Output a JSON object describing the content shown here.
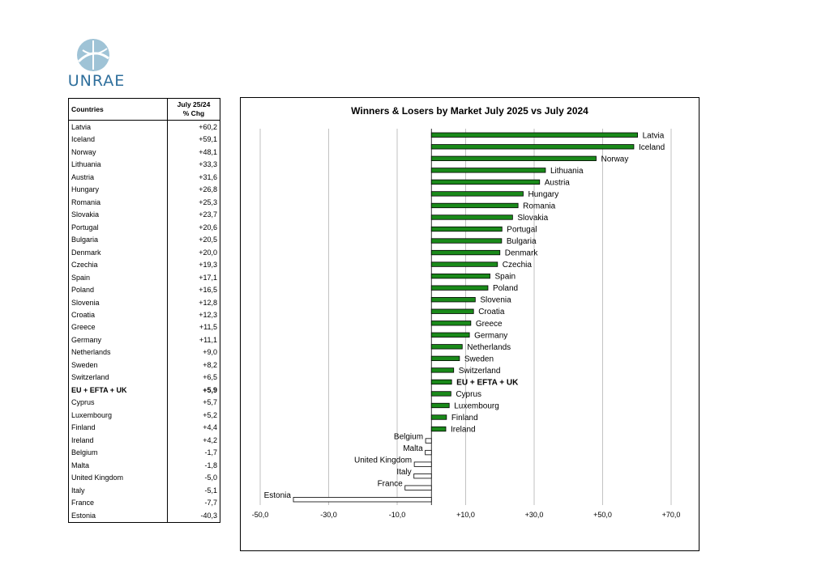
{
  "logo": {
    "name": "UNRAE"
  },
  "table": {
    "header": {
      "col1": "Countries",
      "col2_line1": "July 25/24",
      "col2_line2": "% Chg"
    },
    "rows": [
      {
        "country": "Latvia",
        "chg": "+60,2"
      },
      {
        "country": "Iceland",
        "chg": "+59,1"
      },
      {
        "country": "Norway",
        "chg": "+48,1"
      },
      {
        "country": "Lithuania",
        "chg": "+33,3"
      },
      {
        "country": "Austria",
        "chg": "+31,6"
      },
      {
        "country": "Hungary",
        "chg": "+26,8"
      },
      {
        "country": "Romania",
        "chg": "+25,3"
      },
      {
        "country": "Slovakia",
        "chg": "+23,7"
      },
      {
        "country": "Portugal",
        "chg": "+20,6"
      },
      {
        "country": "Bulgaria",
        "chg": "+20,5"
      },
      {
        "country": "Denmark",
        "chg": "+20,0"
      },
      {
        "country": "Czechia",
        "chg": "+19,3"
      },
      {
        "country": "Spain",
        "chg": "+17,1"
      },
      {
        "country": "Poland",
        "chg": "+16,5"
      },
      {
        "country": "Slovenia",
        "chg": "+12,8"
      },
      {
        "country": "Croatia",
        "chg": "+12,3"
      },
      {
        "country": "Greece",
        "chg": "+11,5"
      },
      {
        "country": "Germany",
        "chg": "+11,1"
      },
      {
        "country": "Netherlands",
        "chg": "+9,0"
      },
      {
        "country": "Sweden",
        "chg": "+8,2"
      },
      {
        "country": "Switzerland",
        "chg": "+6,5"
      },
      {
        "country": "EU + EFTA + UK",
        "chg": "+5,9",
        "bold": true
      },
      {
        "country": "Cyprus",
        "chg": "+5,7"
      },
      {
        "country": "Luxembourg",
        "chg": "+5,2"
      },
      {
        "country": "Finland",
        "chg": "+4,4"
      },
      {
        "country": "Ireland",
        "chg": "+4,2"
      },
      {
        "country": "Belgium",
        "chg": "-1,7"
      },
      {
        "country": "Malta",
        "chg": "-1,8"
      },
      {
        "country": "United Kingdom",
        "chg": "-5,0"
      },
      {
        "country": "Italy",
        "chg": "-5,1"
      },
      {
        "country": "France",
        "chg": "-7,7"
      },
      {
        "country": "Estonia",
        "chg": "-40,3"
      }
    ]
  },
  "chart_data": {
    "type": "bar",
    "orientation": "horizontal",
    "title": "Winners & Losers by Market July 2025 vs July 2024",
    "xlabel": "",
    "ylabel": "",
    "xlim": [
      -50,
      70
    ],
    "xticks": [
      -50,
      -30,
      -10,
      10,
      30,
      50,
      70
    ],
    "xtick_labels": [
      "-50,0",
      "-30,0",
      "-10,0",
      "+10,0",
      "+30,0",
      "+50,0",
      "+70,0"
    ],
    "grid": true,
    "legend": "none",
    "positive_color": "#1a8a1a",
    "negative_color": "#ffffff",
    "categories": [
      "Latvia",
      "Iceland",
      "Norway",
      "Lithuania",
      "Austria",
      "Hungary",
      "Romania",
      "Slovakia",
      "Portugal",
      "Bulgaria",
      "Denmark",
      "Czechia",
      "Spain",
      "Poland",
      "Slovenia",
      "Croatia",
      "Greece",
      "Germany",
      "Netherlands",
      "Sweden",
      "Switzerland",
      "EU + EFTA + UK",
      "Cyprus",
      "Luxembourg",
      "Finland",
      "Ireland",
      "Belgium",
      "Malta",
      "United Kingdom",
      "Italy",
      "France",
      "Estonia"
    ],
    "values": [
      60.2,
      59.1,
      48.1,
      33.3,
      31.6,
      26.8,
      25.3,
      23.7,
      20.6,
      20.5,
      20.0,
      19.3,
      17.1,
      16.5,
      12.8,
      12.3,
      11.5,
      11.1,
      9.0,
      8.2,
      6.5,
      5.9,
      5.7,
      5.2,
      4.4,
      4.2,
      -1.7,
      -1.8,
      -5.0,
      -5.1,
      -7.7,
      -40.3
    ],
    "bold_categories": [
      "EU + EFTA + UK"
    ]
  }
}
